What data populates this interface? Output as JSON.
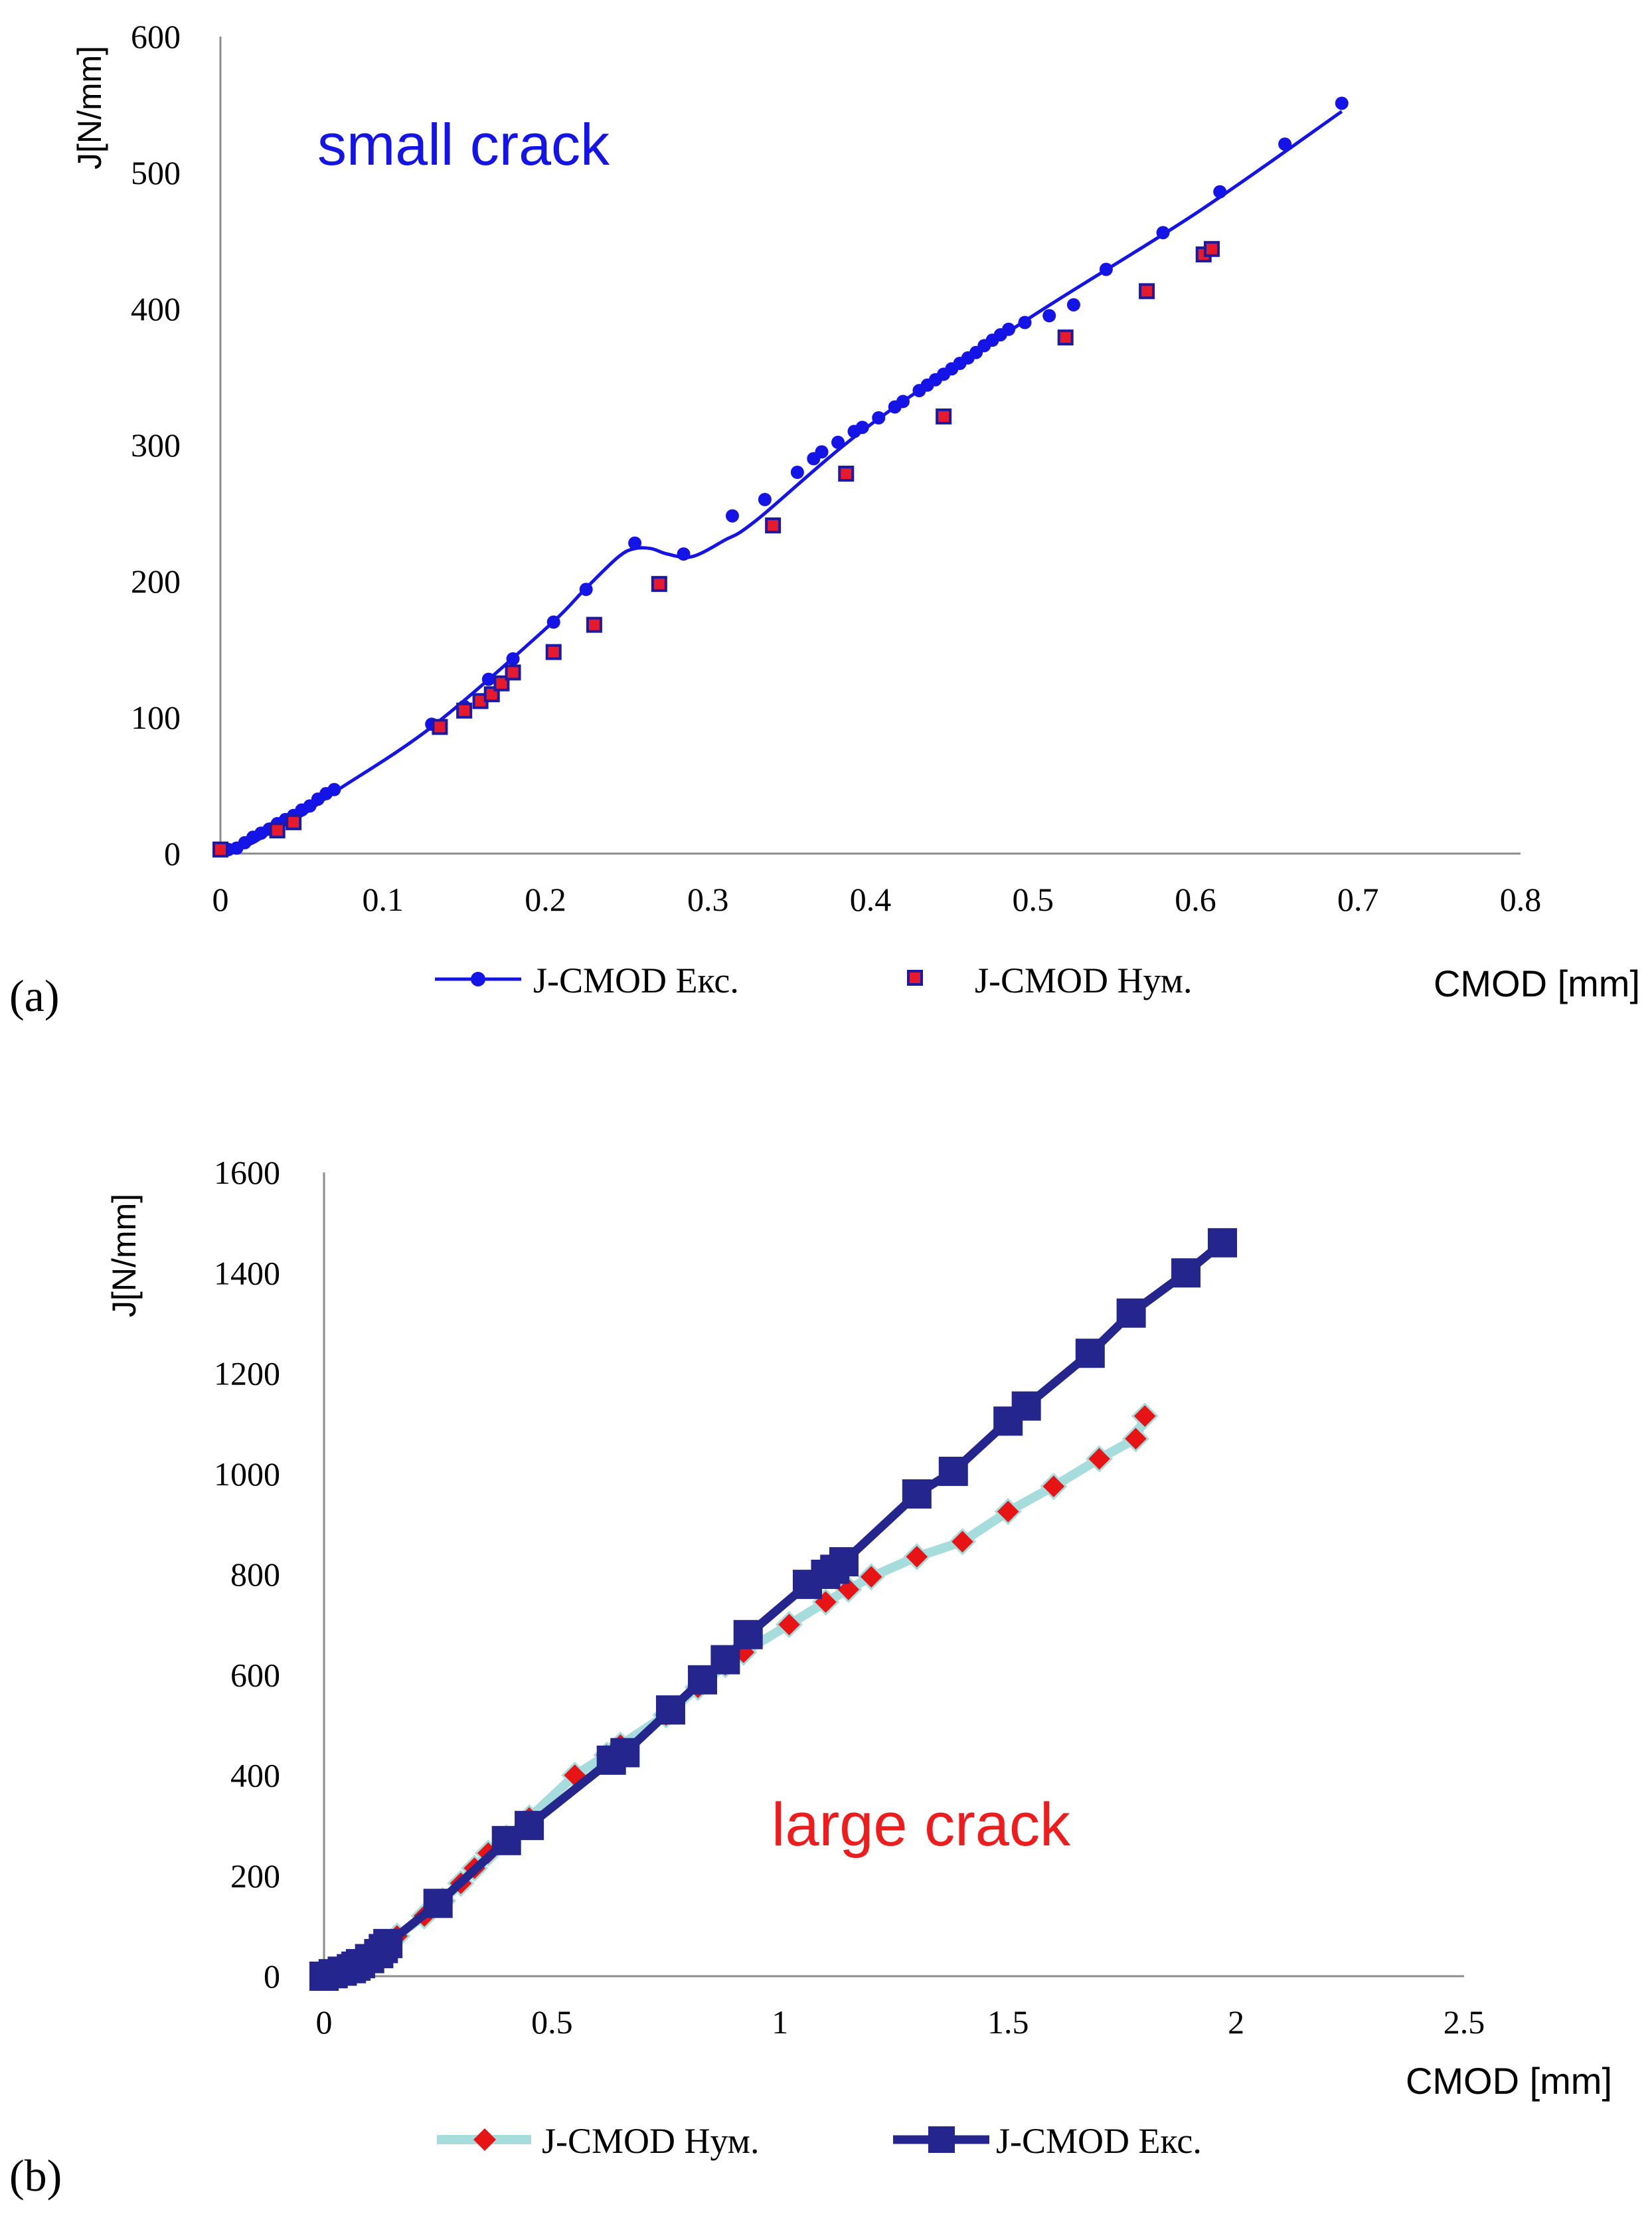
{
  "chart_data": [
    {
      "id": "a",
      "type": "line",
      "panel_label": "(a)",
      "annotation": "small crack",
      "annotation_color": "#1414e6",
      "xlabel": "CMOD [mm]",
      "ylabel": "J[N/mm]",
      "xlim": [
        0,
        0.8
      ],
      "ylim": [
        0,
        600
      ],
      "x_ticks": [
        0,
        0.1,
        0.2,
        0.3,
        0.4,
        0.5,
        0.6,
        0.7,
        0.8
      ],
      "x_tick_labels": [
        "0",
        "0.1",
        "0.2",
        "0.3",
        "0.4",
        "0.5",
        "0.6",
        "0.7",
        "0.8"
      ],
      "y_ticks": [
        0,
        100,
        200,
        300,
        400,
        500,
        600
      ],
      "y_tick_labels": [
        "0",
        "100",
        "200",
        "300",
        "400",
        "500",
        "600"
      ],
      "legend_position": "bottom",
      "series": [
        {
          "name": "J-CMOD Екс.",
          "style": "line-dot",
          "color": "#1414e6",
          "x": [
            0,
            0.005,
            0.01,
            0.015,
            0.02,
            0.025,
            0.03,
            0.035,
            0.04,
            0.045,
            0.05,
            0.055,
            0.06,
            0.065,
            0.07,
            0.13,
            0.15,
            0.165,
            0.18,
            0.205,
            0.225,
            0.255,
            0.285,
            0.315,
            0.335,
            0.355,
            0.365,
            0.37,
            0.38,
            0.39,
            0.395,
            0.405,
            0.415,
            0.42,
            0.43,
            0.435,
            0.44,
            0.445,
            0.45,
            0.455,
            0.46,
            0.465,
            0.47,
            0.475,
            0.48,
            0.485,
            0.495,
            0.51,
            0.525,
            0.545,
            0.58,
            0.615,
            0.655,
            0.69
          ],
          "values": [
            3,
            3,
            4,
            8,
            12,
            15,
            18,
            22,
            25,
            28,
            32,
            35,
            40,
            44,
            47,
            95,
            108,
            128,
            143,
            170,
            194,
            228,
            220,
            248,
            260,
            280,
            290,
            295,
            302,
            310,
            313,
            320,
            328,
            332,
            340,
            344,
            348,
            352,
            356,
            360,
            364,
            368,
            373,
            377,
            381,
            385,
            390,
            395,
            403,
            429,
            456,
            486,
            521,
            551
          ],
          "fit_x": [
            0,
            0.01,
            0.02,
            0.03,
            0.05,
            0.07,
            0.13,
            0.2,
            0.225,
            0.245,
            0.255,
            0.265,
            0.275,
            0.29,
            0.31,
            0.33,
            0.4,
            0.5,
            0.6,
            0.69
          ],
          "fit_values": [
            2,
            3,
            8,
            15,
            28,
            45,
            93,
            165,
            195,
            218,
            224,
            224,
            220,
            218,
            230,
            245,
            315,
            395,
            470,
            545
          ]
        },
        {
          "name": "J-CMOD Нум.",
          "style": "square",
          "color": "#e6192d",
          "edge_color": "#1a1aa6",
          "x": [
            0,
            0.035,
            0.045,
            0.135,
            0.15,
            0.16,
            0.167,
            0.173,
            0.18,
            0.205,
            0.23,
            0.27,
            0.34,
            0.385,
            0.445,
            0.52,
            0.57,
            0.605,
            0.61
          ],
          "values": [
            3,
            17,
            23,
            93,
            105,
            112,
            117,
            125,
            133,
            148,
            168,
            198,
            241,
            279,
            321,
            379,
            413,
            440,
            444
          ]
        }
      ]
    },
    {
      "id": "b",
      "type": "line",
      "panel_label": "(b)",
      "annotation": "large crack",
      "annotation_color": "#ee1c1c",
      "xlabel": "CMOD [mm]",
      "ylabel": "J[N/mm]",
      "xlim": [
        0,
        2.5
      ],
      "ylim": [
        0,
        1600
      ],
      "x_ticks": [
        0,
        0.5,
        1,
        1.5,
        2,
        2.5
      ],
      "x_tick_labels": [
        "0",
        "0.5",
        "1",
        "1.5",
        "2",
        "2.5"
      ],
      "y_ticks": [
        0,
        200,
        400,
        600,
        800,
        1000,
        1200,
        1400,
        1600
      ],
      "y_tick_labels": [
        "0",
        "200",
        "400",
        "600",
        "800",
        "1000",
        "1200",
        "1400",
        "1600"
      ],
      "legend_position": "bottom",
      "series": [
        {
          "name": "J-CMOD Нум.",
          "style": "diamond-line",
          "color": "#e61414",
          "line_color": "#a6dcdc",
          "x": [
            0,
            0.02,
            0.04,
            0.06,
            0.08,
            0.1,
            0.12,
            0.14,
            0.16,
            0.22,
            0.26,
            0.3,
            0.33,
            0.36,
            0.4,
            0.45,
            0.55,
            0.62,
            0.65,
            0.75,
            0.82,
            0.88,
            0.92,
            1.02,
            1.1,
            1.15,
            1.2,
            1.3,
            1.4,
            1.5,
            1.6,
            1.7,
            1.78,
            1.8
          ],
          "values": [
            0,
            5,
            12,
            20,
            30,
            40,
            52,
            65,
            80,
            120,
            150,
            185,
            215,
            245,
            275,
            315,
            400,
            440,
            460,
            520,
            575,
            620,
            645,
            700,
            745,
            770,
            795,
            835,
            865,
            925,
            975,
            1030,
            1070,
            1115
          ]
        },
        {
          "name": "J-CMOD Екс.",
          "style": "square-line",
          "color": "#25258e",
          "x": [
            0,
            0.02,
            0.04,
            0.06,
            0.07,
            0.08,
            0.1,
            0.12,
            0.13,
            0.14,
            0.25,
            0.4,
            0.45,
            0.63,
            0.66,
            0.76,
            0.83,
            0.88,
            0.93,
            1.06,
            1.1,
            1.12,
            1.14,
            1.3,
            1.38,
            1.5,
            1.54,
            1.68,
            1.77,
            1.89,
            1.97
          ],
          "values": [
            0,
            5,
            10,
            15,
            20,
            25,
            35,
            45,
            55,
            65,
            145,
            270,
            300,
            430,
            445,
            530,
            590,
            630,
            680,
            780,
            800,
            810,
            825,
            960,
            1005,
            1105,
            1135,
            1240,
            1320,
            1400,
            1460
          ]
        }
      ]
    }
  ]
}
